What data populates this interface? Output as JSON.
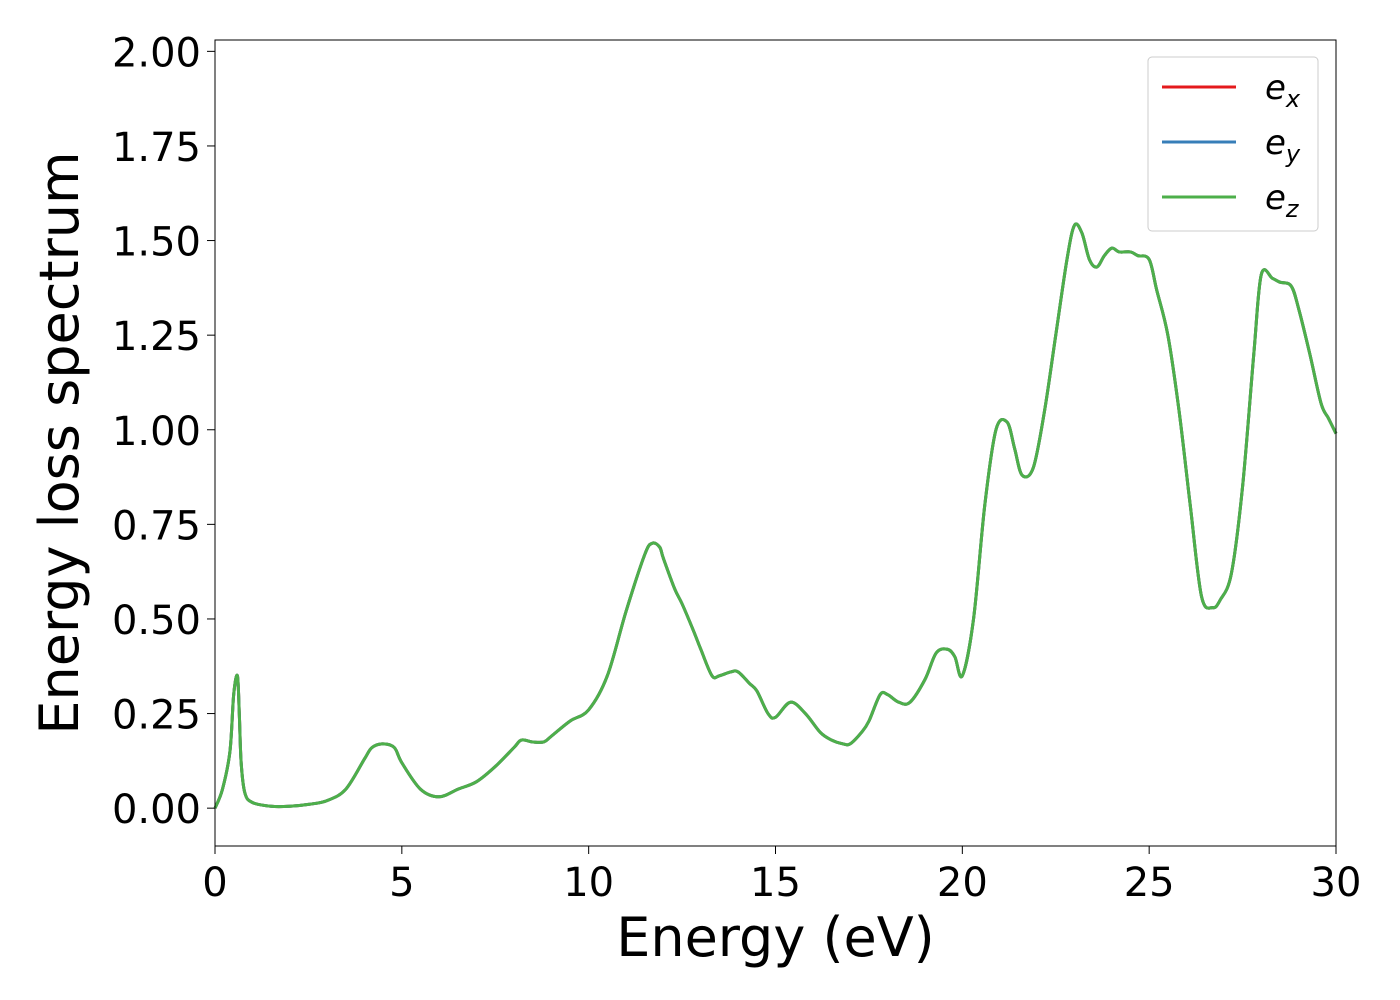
{
  "chart_data": {
    "type": "line",
    "title": "",
    "xlabel": "Energy (eV)",
    "ylabel": "Energy loss spectrum",
    "xlim": [
      0,
      30
    ],
    "ylim": [
      -0.1,
      2.03
    ],
    "xticks": [
      0,
      5,
      10,
      15,
      20,
      25,
      30
    ],
    "xtick_labels": [
      "0",
      "5",
      "10",
      "15",
      "20",
      "25",
      "30"
    ],
    "yticks": [
      0,
      0.25,
      0.5,
      0.75,
      1.0,
      1.25,
      1.5,
      1.75,
      2.0
    ],
    "ytick_labels": [
      "0.00",
      "0.25",
      "0.50",
      "0.75",
      "1.00",
      "1.25",
      "1.50",
      "1.75",
      "2.00"
    ],
    "grid": false,
    "legend_position": "top-right",
    "legend": [
      {
        "base": "e",
        "sub": "x",
        "color": "#e41a1c"
      },
      {
        "base": "e",
        "sub": "y",
        "color": "#377eb8"
      },
      {
        "base": "e",
        "sub": "z",
        "color": "#4daf4a"
      }
    ],
    "x": [
      0,
      0.2,
      0.4,
      0.5,
      0.6,
      0.65,
      0.7,
      0.8,
      1.0,
      1.5,
      2.0,
      2.5,
      3.0,
      3.5,
      4.0,
      4.2,
      4.5,
      4.8,
      5.0,
      5.5,
      6.0,
      6.5,
      7.0,
      7.5,
      8.0,
      8.2,
      8.5,
      8.8,
      9.0,
      9.5,
      10.0,
      10.5,
      11.0,
      11.5,
      11.7,
      11.9,
      12.0,
      12.3,
      12.5,
      12.8,
      13.0,
      13.3,
      13.5,
      13.8,
      14.0,
      14.3,
      14.5,
      14.8,
      15.0,
      15.4,
      15.8,
      16.2,
      16.5,
      16.8,
      17.0,
      17.3,
      17.5,
      17.8,
      18.0,
      18.3,
      18.6,
      19.0,
      19.3,
      19.6,
      19.8,
      20.0,
      20.3,
      20.6,
      20.9,
      21.2,
      21.4,
      21.6,
      21.9,
      22.2,
      22.5,
      22.8,
      23.0,
      23.2,
      23.4,
      23.6,
      23.8,
      24.0,
      24.2,
      24.5,
      24.7,
      25.0,
      25.2,
      25.5,
      25.8,
      26.1,
      26.4,
      26.7,
      26.9,
      27.2,
      27.5,
      27.8,
      28.0,
      28.3,
      28.5,
      28.8,
      29.0,
      29.3,
      29.6,
      29.8,
      30.0
    ],
    "series": [
      {
        "name": "e_x",
        "values": [
          0.0,
          0.05,
          0.15,
          0.3,
          0.35,
          0.25,
          0.12,
          0.04,
          0.015,
          0.005,
          0.005,
          0.01,
          0.02,
          0.05,
          0.13,
          0.16,
          0.17,
          0.16,
          0.12,
          0.05,
          0.03,
          0.05,
          0.07,
          0.11,
          0.16,
          0.18,
          0.175,
          0.175,
          0.19,
          0.23,
          0.26,
          0.35,
          0.52,
          0.67,
          0.7,
          0.69,
          0.66,
          0.58,
          0.54,
          0.47,
          0.42,
          0.35,
          0.35,
          0.36,
          0.36,
          0.33,
          0.31,
          0.25,
          0.24,
          0.28,
          0.25,
          0.2,
          0.18,
          0.17,
          0.17,
          0.2,
          0.23,
          0.3,
          0.3,
          0.28,
          0.28,
          0.34,
          0.41,
          0.42,
          0.4,
          0.35,
          0.5,
          0.8,
          1.0,
          1.02,
          0.95,
          0.88,
          0.9,
          1.05,
          1.25,
          1.45,
          1.54,
          1.52,
          1.45,
          1.43,
          1.46,
          1.48,
          1.47,
          1.47,
          1.46,
          1.45,
          1.37,
          1.25,
          1.05,
          0.8,
          0.56,
          0.53,
          0.55,
          0.62,
          0.85,
          1.2,
          1.41,
          1.4,
          1.39,
          1.38,
          1.32,
          1.2,
          1.07,
          1.03,
          0.99
        ]
      },
      {
        "name": "e_y",
        "values": [
          0.0,
          0.05,
          0.15,
          0.3,
          0.35,
          0.25,
          0.12,
          0.04,
          0.015,
          0.005,
          0.005,
          0.01,
          0.02,
          0.05,
          0.13,
          0.16,
          0.17,
          0.16,
          0.12,
          0.05,
          0.03,
          0.05,
          0.07,
          0.11,
          0.16,
          0.18,
          0.175,
          0.175,
          0.19,
          0.23,
          0.26,
          0.35,
          0.52,
          0.67,
          0.7,
          0.69,
          0.66,
          0.58,
          0.54,
          0.47,
          0.42,
          0.35,
          0.35,
          0.36,
          0.36,
          0.33,
          0.31,
          0.25,
          0.24,
          0.28,
          0.25,
          0.2,
          0.18,
          0.17,
          0.17,
          0.2,
          0.23,
          0.3,
          0.3,
          0.28,
          0.28,
          0.34,
          0.41,
          0.42,
          0.4,
          0.35,
          0.5,
          0.8,
          1.0,
          1.02,
          0.95,
          0.88,
          0.9,
          1.05,
          1.25,
          1.45,
          1.54,
          1.52,
          1.45,
          1.43,
          1.46,
          1.48,
          1.47,
          1.47,
          1.46,
          1.45,
          1.37,
          1.25,
          1.05,
          0.8,
          0.56,
          0.53,
          0.55,
          0.62,
          0.85,
          1.2,
          1.41,
          1.4,
          1.39,
          1.38,
          1.32,
          1.2,
          1.07,
          1.03,
          0.99
        ]
      },
      {
        "name": "e_z",
        "values": [
          0.0,
          0.05,
          0.15,
          0.3,
          0.35,
          0.25,
          0.12,
          0.04,
          0.015,
          0.005,
          0.005,
          0.01,
          0.02,
          0.05,
          0.13,
          0.16,
          0.17,
          0.16,
          0.12,
          0.05,
          0.03,
          0.05,
          0.07,
          0.11,
          0.16,
          0.18,
          0.175,
          0.175,
          0.19,
          0.23,
          0.26,
          0.35,
          0.52,
          0.67,
          0.7,
          0.69,
          0.66,
          0.58,
          0.54,
          0.47,
          0.42,
          0.35,
          0.35,
          0.36,
          0.36,
          0.33,
          0.31,
          0.25,
          0.24,
          0.28,
          0.25,
          0.2,
          0.18,
          0.17,
          0.17,
          0.2,
          0.23,
          0.3,
          0.3,
          0.28,
          0.28,
          0.34,
          0.41,
          0.42,
          0.4,
          0.35,
          0.5,
          0.8,
          1.0,
          1.02,
          0.95,
          0.88,
          0.9,
          1.05,
          1.25,
          1.45,
          1.54,
          1.52,
          1.45,
          1.43,
          1.46,
          1.48,
          1.47,
          1.47,
          1.46,
          1.45,
          1.37,
          1.25,
          1.05,
          0.8,
          0.56,
          0.53,
          0.55,
          0.62,
          0.85,
          1.2,
          1.41,
          1.4,
          1.39,
          1.38,
          1.32,
          1.2,
          1.07,
          1.03,
          0.99
        ]
      }
    ]
  }
}
